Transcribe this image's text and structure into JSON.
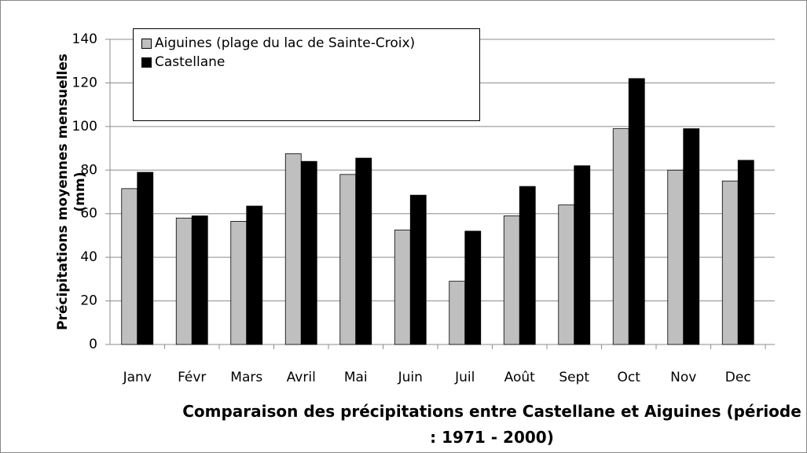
{
  "chart_data": {
    "type": "bar",
    "title": "Comparaison des précipitations entre Castellane et Aiguines (période : 1971 - 2000)",
    "ylabel": "Précipitations moyennes mensuelles (mm)",
    "categories": [
      "Janv",
      "Févr",
      "Mars",
      "Avril",
      "Mai",
      "Juin",
      "Juil",
      "Août",
      "Sept",
      "Oct",
      "Nov",
      "Dec"
    ],
    "series": [
      {
        "name": "Aiguines (plage du lac de Sainte-Croix)",
        "color": "#bfbfbf",
        "values": [
          71.5,
          58,
          56.5,
          87.5,
          78,
          52.5,
          29,
          59,
          64,
          99,
          80,
          75
        ]
      },
      {
        "name": "Castellane",
        "color": "#000000",
        "values": [
          79,
          59,
          63.5,
          84,
          85.5,
          68.5,
          52,
          72.5,
          82,
          122,
          99,
          84.5
        ]
      }
    ],
    "ylim": [
      0,
      140
    ],
    "yticks": [
      0,
      20,
      40,
      60,
      80,
      100,
      120,
      140
    ],
    "grid": true,
    "legend": "top-left"
  }
}
